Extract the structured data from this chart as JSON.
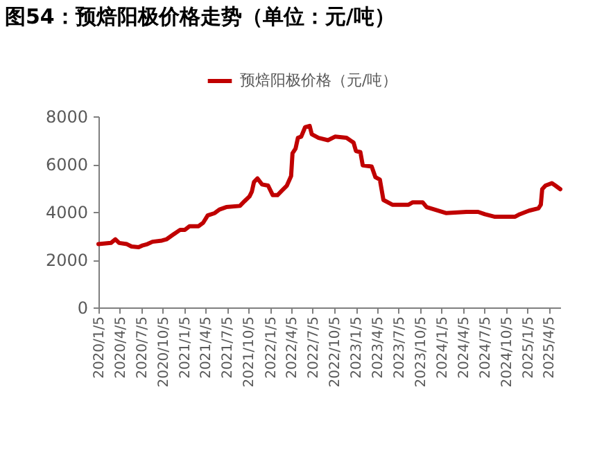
{
  "chart_data": {
    "type": "line",
    "title": "图54：预焙阳极价格走势（单位：元/吨）",
    "x": [
      "2020-01-05",
      "2020-02-27",
      "2020-03-17",
      "2020-04-02",
      "2020-05-05",
      "2020-05-25",
      "2020-06-24",
      "2020-07-12",
      "2020-07-31",
      "2020-08-22",
      "2020-10-01",
      "2020-10-20",
      "2020-11-18",
      "2020-12-18",
      "2021-01-07",
      "2021-01-27",
      "2021-03-06",
      "2021-03-26",
      "2021-04-14",
      "2021-05-14",
      "2021-06-03",
      "2021-07-02",
      "2021-08-29",
      "2021-09-18",
      "2021-10-09",
      "2021-10-19",
      "2021-10-28",
      "2021-11-12",
      "2021-12-01",
      "2021-12-27",
      "2022-01-16",
      "2022-02-05",
      "2022-02-25",
      "2022-03-17",
      "2022-04-04",
      "2022-04-10",
      "2022-04-23",
      "2022-05-03",
      "2022-05-17",
      "2022-06-03",
      "2022-06-22",
      "2022-07-01",
      "2022-07-30",
      "2022-09-08",
      "2022-10-08",
      "2022-11-26",
      "2022-12-26",
      "2023-01-05",
      "2023-01-24",
      "2023-02-03",
      "2023-03-13",
      "2023-03-29",
      "2023-04-17",
      "2023-05-02",
      "2023-06-09",
      "2023-08-17",
      "2023-09-04",
      "2023-10-16",
      "2023-11-02",
      "2024-01-23",
      "2024-04-20",
      "2024-06-08",
      "2024-07-07",
      "2024-08-16",
      "2024-11-13",
      "2024-12-02",
      "2025-01-11",
      "2025-02-20",
      "2025-03-02",
      "2025-03-08",
      "2025-03-22",
      "2025-04-18",
      "2025-05-03",
      "2025-05-24"
    ],
    "series": [
      {
        "name": "预焙阳极价格（元/吨）",
        "color": "#c00000",
        "values": [
          2650,
          2700,
          2850,
          2700,
          2650,
          2550,
          2520,
          2600,
          2650,
          2750,
          2800,
          2850,
          3050,
          3250,
          3250,
          3400,
          3400,
          3550,
          3850,
          3950,
          4100,
          4200,
          4250,
          4450,
          4650,
          4850,
          5250,
          5400,
          5150,
          5100,
          4700,
          4700,
          4900,
          5100,
          5500,
          6450,
          6650,
          7100,
          7150,
          7550,
          7600,
          7250,
          7100,
          7000,
          7150,
          7100,
          6900,
          6550,
          6500,
          5950,
          5900,
          5450,
          5350,
          4500,
          4300,
          4300,
          4400,
          4400,
          4200,
          3950,
          4000,
          4000,
          3900,
          3800,
          3800,
          3900,
          4050,
          4150,
          4300,
          4950,
          5100,
          5200,
          5100,
          4950
        ]
      }
    ],
    "xlim": [
      "2020-01-05",
      "2025-05-24"
    ],
    "xticks": [
      {
        "value": "2020-01-05",
        "label": "2020/1/5"
      },
      {
        "value": "2020-04-05",
        "label": "2020/4/5"
      },
      {
        "value": "2020-07-05",
        "label": "2020/7/5"
      },
      {
        "value": "2020-10-05",
        "label": "2020/10/5"
      },
      {
        "value": "2021-01-05",
        "label": "2021/1/5"
      },
      {
        "value": "2021-04-05",
        "label": "2021/4/5"
      },
      {
        "value": "2021-07-05",
        "label": "2021/7/5"
      },
      {
        "value": "2021-10-05",
        "label": "2021/10/5"
      },
      {
        "value": "2022-01-05",
        "label": "2022/1/5"
      },
      {
        "value": "2022-04-05",
        "label": "2022/4/5"
      },
      {
        "value": "2022-07-05",
        "label": "2022/7/5"
      },
      {
        "value": "2022-10-05",
        "label": "2022/10/5"
      },
      {
        "value": "2023-01-05",
        "label": "2023/1/5"
      },
      {
        "value": "2023-04-05",
        "label": "2023/4/5"
      },
      {
        "value": "2023-07-05",
        "label": "2023/7/5"
      },
      {
        "value": "2023-10-05",
        "label": "2023/10/5"
      },
      {
        "value": "2024-01-05",
        "label": "2024/1/5"
      },
      {
        "value": "2024-04-05",
        "label": "2024/4/5"
      },
      {
        "value": "2024-07-05",
        "label": "2024/7/5"
      },
      {
        "value": "2024-10-05",
        "label": "2024/10/5"
      },
      {
        "value": "2025-01-05",
        "label": "2025/1/5"
      },
      {
        "value": "2025-04-05",
        "label": "2025/4/5"
      }
    ],
    "ylim": [
      0,
      8000
    ],
    "yticks": [
      0,
      2000,
      4000,
      6000,
      8000
    ],
    "grid": false,
    "legend": "top",
    "marker": "none",
    "line_style": "solid"
  }
}
